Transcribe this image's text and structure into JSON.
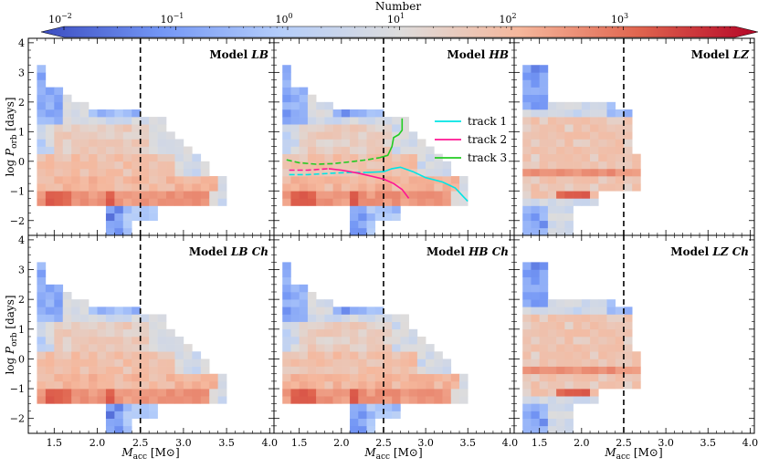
{
  "colorbar": {
    "label": "Number",
    "scale": "log",
    "range": [
      0.01,
      10000
    ],
    "ticks": [
      {
        "value": 0.01,
        "label": "10",
        "exp": "−2"
      },
      {
        "value": 0.1,
        "label": "10",
        "exp": "−1"
      },
      {
        "value": 1,
        "label": "10",
        "exp": "0"
      },
      {
        "value": 10,
        "label": "10",
        "exp": "1"
      },
      {
        "value": 100,
        "label": "10",
        "exp": "2"
      },
      {
        "value": 1000,
        "label": "10",
        "exp": "3"
      }
    ],
    "colors": [
      "#3b4cc0",
      "#7396f5",
      "#b4cdfa",
      "#dddcdc",
      "#f5b79c",
      "#e0654f",
      "#b40426"
    ]
  },
  "axes": {
    "xlabel_main": "M",
    "xlabel_sub": "acc",
    "xlabel_unit": " [M",
    "xlabel_unit_end": "]",
    "ylabel_main": "log P",
    "ylabel_sub": "orb",
    "ylabel_unit": " [days]",
    "xlim": [
      1.2,
      4.05
    ],
    "ylim": [
      -2.5,
      4.15
    ],
    "xticks": [
      "1.5",
      "2.0",
      "2.5",
      "3.0",
      "3.5",
      "4.0"
    ],
    "yticks": [
      "−2",
      "−1",
      "0",
      "1",
      "2",
      "3",
      "4"
    ],
    "vline_x": 2.5
  },
  "chart_data": {
    "type": "heatmap",
    "description_units": "x = accretor mass [Msun], y = log orbital period [days], cell value = number (log color scale)",
    "cell": {
      "dx": 0.1,
      "dy": 0.25
    },
    "panels": [
      {
        "id": "LB",
        "title_prefix": "Model ",
        "title_italic": "LB",
        "title_suffix": "",
        "shape": "wide",
        "show_ylabels": true,
        "show_xlabels": false
      },
      {
        "id": "HB",
        "title_prefix": "Model ",
        "title_italic": "HB",
        "title_suffix": "",
        "shape": "wide",
        "show_ylabels": false,
        "show_xlabels": false
      },
      {
        "id": "LZ",
        "title_prefix": "Model ",
        "title_italic": "LZ",
        "title_suffix": "",
        "shape": "narrow",
        "show_ylabels": false,
        "show_xlabels": false
      },
      {
        "id": "LBCh",
        "title_prefix": "Model ",
        "title_italic": "LB Ch",
        "title_suffix": "",
        "shape": "wide",
        "show_ylabels": true,
        "show_xlabels": true
      },
      {
        "id": "HBCh",
        "title_prefix": "Model ",
        "title_italic": "HB Ch",
        "title_suffix": "",
        "shape": "wide",
        "show_ylabels": false,
        "show_xlabels": true
      },
      {
        "id": "LZCh",
        "title_prefix": "Model ",
        "title_italic": "LZ Ch",
        "title_suffix": "",
        "shape": "narrow",
        "show_ylabels": false,
        "show_xlabels": true
      }
    ],
    "tracks": {
      "panel": "HB",
      "legend": [
        {
          "label": "track 1",
          "color": "#00e5e5"
        },
        {
          "label": "track 2",
          "color": "#ff1493"
        },
        {
          "label": "track 3",
          "color": "#22cc22"
        }
      ],
      "series": [
        {
          "name": "track 1",
          "color": "#00e5e5",
          "dashed": [
            [
              1.38,
              -0.45
            ],
            [
              1.6,
              -0.45
            ],
            [
              1.9,
              -0.4
            ],
            [
              2.1,
              -0.38
            ],
            [
              2.3,
              -0.38
            ]
          ],
          "solid": [
            [
              2.3,
              -0.38
            ],
            [
              2.5,
              -0.35
            ],
            [
              2.6,
              -0.25
            ],
            [
              2.7,
              -0.2
            ],
            [
              2.85,
              -0.35
            ],
            [
              3.0,
              -0.55
            ],
            [
              3.2,
              -0.7
            ],
            [
              3.35,
              -0.9
            ],
            [
              3.45,
              -1.2
            ],
            [
              3.5,
              -1.35
            ]
          ]
        },
        {
          "name": "track 2",
          "color": "#ff1493",
          "dashed": [
            [
              1.38,
              -0.3
            ],
            [
              1.6,
              -0.3
            ],
            [
              1.85,
              -0.25
            ]
          ],
          "solid": [
            [
              1.85,
              -0.25
            ],
            [
              2.0,
              -0.3
            ],
            [
              2.2,
              -0.4
            ],
            [
              2.35,
              -0.5
            ],
            [
              2.5,
              -0.6
            ],
            [
              2.62,
              -0.75
            ],
            [
              2.72,
              -0.95
            ],
            [
              2.8,
              -1.25
            ]
          ]
        },
        {
          "name": "track 3",
          "color": "#22cc22",
          "dashed": [
            [
              1.35,
              0.05
            ],
            [
              1.5,
              -0.05
            ],
            [
              1.7,
              -0.1
            ],
            [
              1.9,
              -0.08
            ],
            [
              2.1,
              -0.02
            ],
            [
              2.3,
              0.05
            ],
            [
              2.45,
              0.12
            ]
          ],
          "solid": [
            [
              2.45,
              0.12
            ],
            [
              2.55,
              0.2
            ],
            [
              2.6,
              0.5
            ],
            [
              2.62,
              0.8
            ],
            [
              2.68,
              0.9
            ],
            [
              2.72,
              1.05
            ],
            [
              2.72,
              1.45
            ]
          ]
        }
      ]
    }
  }
}
